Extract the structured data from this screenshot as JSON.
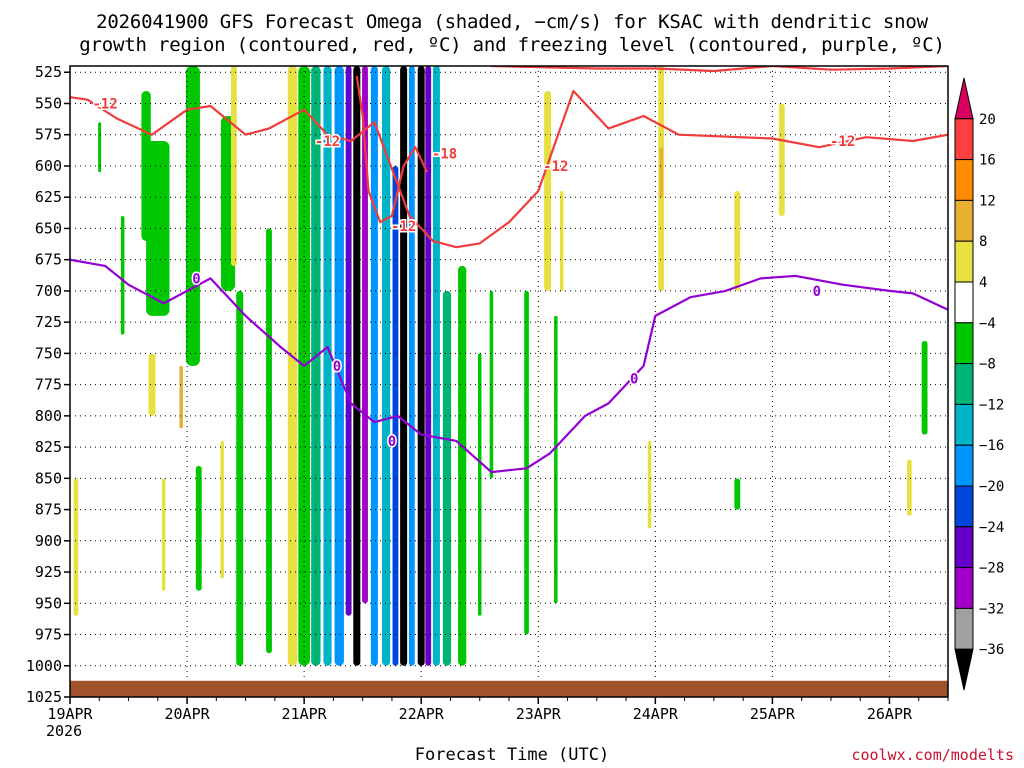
{
  "title": {
    "line1": "2026041900 GFS Forecast Omega (shaded, −cm/s) for KSAC with dendritic snow",
    "line2": "growth region (contoured, red, ºC) and freezing level (contoured, purple, ºC)"
  },
  "credit": "coolwx.com/modelts",
  "chart_data": {
    "type": "heatmap",
    "title": "2026041900 GFS Forecast Omega (shaded, −cm/s) for KSAC with dendritic snow growth region (contoured, red, ºC) and freezing level (contoured, purple, ºC)",
    "xlabel": "Forecast Time (UTC)",
    "ylabel": "Pressure (hPa)",
    "x_year": "2026",
    "x_ticks": [
      "19APR",
      "20APR",
      "21APR",
      "22APR",
      "23APR",
      "24APR",
      "25APR",
      "26APR"
    ],
    "xlim_days": [
      0,
      7.5
    ],
    "y_ticks": [
      525,
      550,
      575,
      600,
      625,
      650,
      675,
      700,
      725,
      750,
      775,
      800,
      825,
      850,
      875,
      900,
      925,
      950,
      975,
      1000,
      1025
    ],
    "ylim_hpa": [
      520,
      1025
    ],
    "colorbar": {
      "labels": [
        "20",
        "16",
        "12",
        "8",
        "4",
        "−4",
        "−8",
        "−12",
        "−16",
        "−20",
        "−24",
        "−28",
        "−32",
        "−36"
      ],
      "bins": [
        {
          "color": "#d7005f"
        },
        {
          "color": "#ff4040"
        },
        {
          "color": "#ff8c00"
        },
        {
          "color": "#e8b030"
        },
        {
          "color": "#e6e040"
        },
        {
          "color": "#ffffff"
        },
        {
          "color": "#00c800"
        },
        {
          "color": "#00b478"
        },
        {
          "color": "#00b4c8"
        },
        {
          "color": "#0096ff"
        },
        {
          "color": "#0046dc"
        },
        {
          "color": "#6400c8"
        },
        {
          "color": "#a000c8"
        },
        {
          "color": "#a0a0a0"
        },
        {
          "color": "#000000"
        }
      ]
    },
    "shaded_regions": [
      {
        "day": 0.05,
        "p_top": 850,
        "p_bot": 960,
        "w": 0.04,
        "bin": 4
      },
      {
        "day": 0.25,
        "p_top": 565,
        "p_bot": 605,
        "w": 0.02,
        "bin": 6
      },
      {
        "day": 0.45,
        "p_top": 640,
        "p_bot": 735,
        "w": 0.03,
        "bin": 6
      },
      {
        "day": 0.75,
        "p_top": 580,
        "p_bot": 720,
        "w": 0.2,
        "bin": 6
      },
      {
        "day": 1.05,
        "p_top": 520,
        "p_bot": 760,
        "w": 0.12,
        "bin": 6
      },
      {
        "day": 1.35,
        "p_top": 560,
        "p_bot": 700,
        "w": 0.12,
        "bin": 6
      },
      {
        "day": 1.4,
        "p_top": 520,
        "p_bot": 680,
        "w": 0.05,
        "bin": 4
      },
      {
        "day": 0.65,
        "p_top": 540,
        "p_bot": 660,
        "w": 0.08,
        "bin": 6
      },
      {
        "day": 0.95,
        "p_top": 760,
        "p_bot": 810,
        "w": 0.03,
        "bin": 3
      },
      {
        "day": 0.7,
        "p_top": 750,
        "p_bot": 800,
        "w": 0.06,
        "bin": 4
      },
      {
        "day": 0.8,
        "p_top": 850,
        "p_bot": 940,
        "w": 0.03,
        "bin": 4
      },
      {
        "day": 1.1,
        "p_top": 840,
        "p_bot": 940,
        "w": 0.05,
        "bin": 6
      },
      {
        "day": 1.3,
        "p_top": 820,
        "p_bot": 930,
        "w": 0.03,
        "bin": 4
      },
      {
        "day": 1.45,
        "p_top": 700,
        "p_bot": 1000,
        "w": 0.06,
        "bin": 6
      },
      {
        "day": 1.7,
        "p_top": 650,
        "p_bot": 990,
        "w": 0.05,
        "bin": 6
      },
      {
        "day": 1.9,
        "p_top": 520,
        "p_bot": 1000,
        "w": 0.08,
        "bin": 4
      },
      {
        "day": 2.0,
        "p_top": 520,
        "p_bot": 1000,
        "w": 0.1,
        "bin": 6
      },
      {
        "day": 2.1,
        "p_top": 520,
        "p_bot": 1000,
        "w": 0.08,
        "bin": 7
      },
      {
        "day": 2.2,
        "p_top": 520,
        "p_bot": 1000,
        "w": 0.07,
        "bin": 8
      },
      {
        "day": 2.3,
        "p_top": 520,
        "p_bot": 1000,
        "w": 0.08,
        "bin": 9
      },
      {
        "day": 2.38,
        "p_top": 520,
        "p_bot": 960,
        "w": 0.05,
        "bin": 11
      },
      {
        "day": 2.45,
        "p_top": 520,
        "p_bot": 1000,
        "w": 0.06,
        "bin": 14
      },
      {
        "day": 2.52,
        "p_top": 520,
        "p_bot": 950,
        "w": 0.05,
        "bin": 12
      },
      {
        "day": 2.6,
        "p_top": 520,
        "p_bot": 1000,
        "w": 0.06,
        "bin": 9
      },
      {
        "day": 2.7,
        "p_top": 520,
        "p_bot": 1000,
        "w": 0.07,
        "bin": 8
      },
      {
        "day": 2.78,
        "p_top": 600,
        "p_bot": 1000,
        "w": 0.05,
        "bin": 10
      },
      {
        "day": 2.85,
        "p_top": 520,
        "p_bot": 1000,
        "w": 0.06,
        "bin": 14
      },
      {
        "day": 2.92,
        "p_top": 520,
        "p_bot": 1000,
        "w": 0.05,
        "bin": 9
      },
      {
        "day": 3.0,
        "p_top": 520,
        "p_bot": 1000,
        "w": 0.06,
        "bin": 14
      },
      {
        "day": 3.06,
        "p_top": 520,
        "p_bot": 1000,
        "w": 0.05,
        "bin": 11
      },
      {
        "day": 3.13,
        "p_top": 520,
        "p_bot": 1000,
        "w": 0.06,
        "bin": 8
      },
      {
        "day": 3.22,
        "p_top": 700,
        "p_bot": 1000,
        "w": 0.07,
        "bin": 7
      },
      {
        "day": 3.35,
        "p_top": 680,
        "p_bot": 1000,
        "w": 0.07,
        "bin": 6
      },
      {
        "day": 3.5,
        "p_top": 750,
        "p_bot": 960,
        "w": 0.03,
        "bin": 6
      },
      {
        "day": 3.6,
        "p_top": 700,
        "p_bot": 850,
        "w": 0.03,
        "bin": 6
      },
      {
        "day": 3.9,
        "p_top": 700,
        "p_bot": 975,
        "w": 0.04,
        "bin": 6
      },
      {
        "day": 4.15,
        "p_top": 720,
        "p_bot": 950,
        "w": 0.03,
        "bin": 6
      },
      {
        "day": 4.08,
        "p_top": 540,
        "p_bot": 700,
        "w": 0.06,
        "bin": 4
      },
      {
        "day": 4.2,
        "p_top": 620,
        "p_bot": 700,
        "w": 0.03,
        "bin": 4
      },
      {
        "day": 5.05,
        "p_top": 520,
        "p_bot": 700,
        "w": 0.05,
        "bin": 4
      },
      {
        "day": 5.05,
        "p_top": 585,
        "p_bot": 625,
        "w": 0.03,
        "bin": 3
      },
      {
        "day": 5.7,
        "p_top": 620,
        "p_bot": 700,
        "w": 0.05,
        "bin": 4
      },
      {
        "day": 6.08,
        "p_top": 550,
        "p_bot": 640,
        "w": 0.05,
        "bin": 4
      },
      {
        "day": 4.95,
        "p_top": 820,
        "p_bot": 890,
        "w": 0.03,
        "bin": 4
      },
      {
        "day": 5.7,
        "p_top": 850,
        "p_bot": 875,
        "w": 0.05,
        "bin": 6
      },
      {
        "day": 7.3,
        "p_top": 740,
        "p_bot": 815,
        "w": 0.05,
        "bin": 6
      },
      {
        "day": 7.17,
        "p_top": 835,
        "p_bot": 880,
        "w": 0.04,
        "bin": 4
      }
    ],
    "red_contour_minus12_upper": {
      "label": "-12",
      "points": [
        [
          0,
          545
        ],
        [
          0.15,
          547
        ],
        [
          0.4,
          562
        ],
        [
          0.7,
          575
        ],
        [
          1.0,
          555
        ],
        [
          1.2,
          552
        ],
        [
          1.5,
          575
        ],
        [
          1.7,
          570
        ],
        [
          2.0,
          555
        ],
        [
          2.2,
          575
        ],
        [
          2.4,
          580
        ],
        [
          2.6,
          565
        ],
        [
          2.9,
          640
        ],
        [
          3.1,
          660
        ],
        [
          3.3,
          665
        ],
        [
          3.5,
          662
        ],
        [
          3.75,
          645
        ],
        [
          4.0,
          620
        ],
        [
          4.3,
          540
        ],
        [
          4.6,
          570
        ],
        [
          4.9,
          560
        ],
        [
          5.2,
          575
        ],
        [
          6.0,
          578
        ],
        [
          6.4,
          585
        ],
        [
          6.8,
          577
        ],
        [
          7.2,
          580
        ],
        [
          7.5,
          575
        ]
      ]
    },
    "red_contour_minus18": {
      "label": "-18",
      "points": [
        [
          2.45,
          528
        ],
        [
          2.5,
          560
        ],
        [
          2.55,
          620
        ],
        [
          2.65,
          645
        ],
        [
          2.75,
          640
        ],
        [
          2.85,
          600
        ],
        [
          2.95,
          585
        ],
        [
          3.05,
          605
        ]
      ]
    },
    "red_contour_top": {
      "label": "",
      "points": [
        [
          3.6,
          520
        ],
        [
          4.5,
          522
        ],
        [
          5.0,
          522
        ],
        [
          5.5,
          524
        ],
        [
          6.0,
          520
        ],
        [
          6.5,
          523
        ],
        [
          7.0,
          522
        ],
        [
          7.5,
          520
        ]
      ]
    },
    "purple_contour_zero": {
      "label": "0",
      "points": [
        [
          0,
          675
        ],
        [
          0.3,
          680
        ],
        [
          0.5,
          695
        ],
        [
          0.8,
          710
        ],
        [
          1.0,
          700
        ],
        [
          1.2,
          690
        ],
        [
          1.5,
          720
        ],
        [
          1.8,
          745
        ],
        [
          2.0,
          760
        ],
        [
          2.2,
          745
        ],
        [
          2.4,
          790
        ],
        [
          2.6,
          805
        ],
        [
          2.8,
          800
        ],
        [
          3.0,
          815
        ],
        [
          3.3,
          820
        ],
        [
          3.6,
          845
        ],
        [
          3.9,
          842
        ],
        [
          4.1,
          830
        ],
        [
          4.4,
          800
        ],
        [
          4.6,
          790
        ],
        [
          4.9,
          760
        ],
        [
          5.0,
          720
        ],
        [
          5.3,
          705
        ],
        [
          5.6,
          700
        ],
        [
          5.9,
          690
        ],
        [
          6.2,
          688
        ],
        [
          6.6,
          695
        ],
        [
          7.0,
          700
        ],
        [
          7.2,
          702
        ],
        [
          7.5,
          715
        ]
      ]
    },
    "contour_labels": [
      {
        "text": "-12",
        "day": 0.3,
        "p": 550,
        "color": "red"
      },
      {
        "text": "-12",
        "day": 2.2,
        "p": 580,
        "color": "red"
      },
      {
        "text": "-12",
        "day": 2.85,
        "p": 648,
        "color": "red"
      },
      {
        "text": "-18",
        "day": 3.2,
        "p": 590,
        "color": "red"
      },
      {
        "text": "-12",
        "day": 4.15,
        "p": 600,
        "color": "red"
      },
      {
        "text": "-12",
        "day": 6.6,
        "p": 580,
        "color": "red"
      },
      {
        "text": "0",
        "day": 1.08,
        "p": 690,
        "color": "purple"
      },
      {
        "text": "0",
        "day": 2.28,
        "p": 760,
        "color": "purple"
      },
      {
        "text": "0",
        "day": 4.82,
        "p": 770,
        "color": "purple"
      },
      {
        "text": "0",
        "day": 6.38,
        "p": 700,
        "color": "purple"
      },
      {
        "text": "0",
        "day": 2.75,
        "p": 820,
        "color": "purple"
      }
    ],
    "terrain_color": "#a0522d",
    "terrain_p": 1012
  }
}
